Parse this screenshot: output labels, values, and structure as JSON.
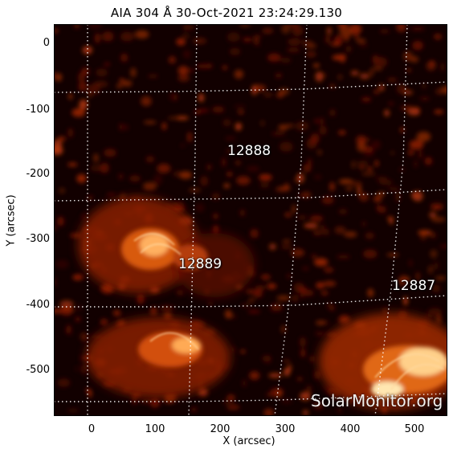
{
  "title": "AIA 304 Å 30-Oct-2021 23:24:29.130",
  "axes": {
    "xlabel": "X (arcsec)",
    "ylabel": "Y (arcsec)",
    "x_ticks": [
      "0",
      "100",
      "200",
      "300",
      "400",
      "500"
    ],
    "y_ticks": [
      "0",
      "-100",
      "-200",
      "-300",
      "-400",
      "-500"
    ]
  },
  "regions": [
    {
      "label": "12888"
    },
    {
      "label": "12889"
    },
    {
      "label": "12887"
    }
  ],
  "watermark": "SolarMonitor.org",
  "colors": {
    "background": "#120000",
    "plasma_dim": "#7a1400",
    "plasma_mid": "#d25010",
    "plasma_bright": "#ffe6b0",
    "grid": "#ffffff"
  }
}
